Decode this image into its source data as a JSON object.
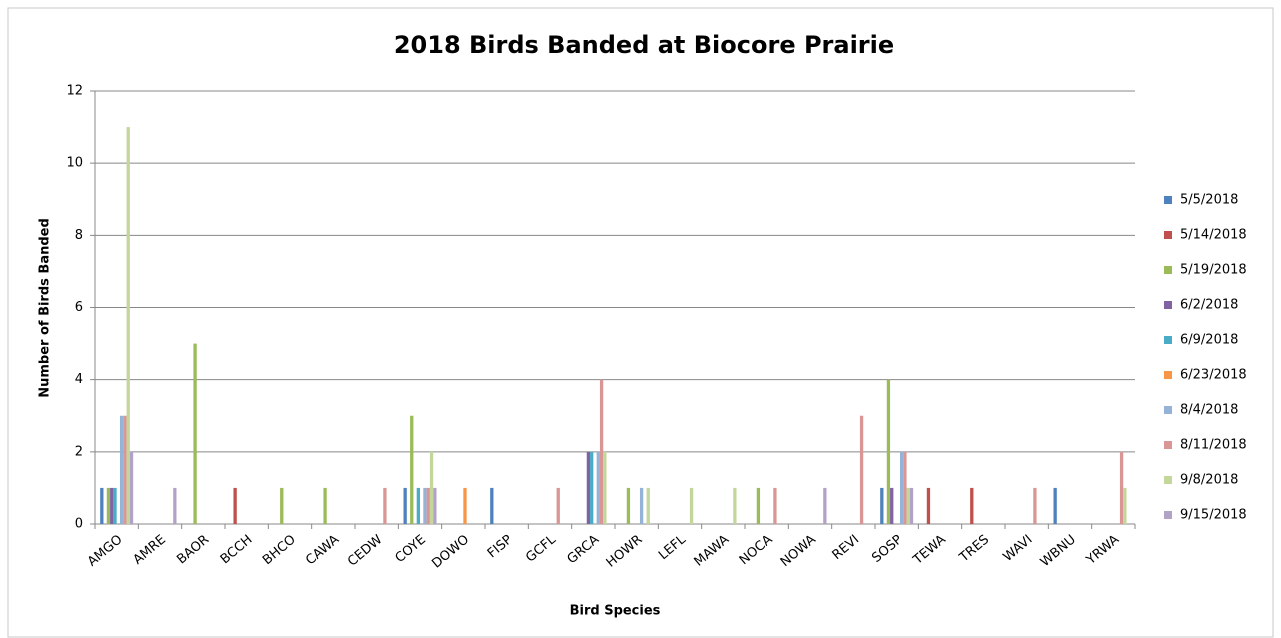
{
  "chart_data": {
    "type": "bar",
    "title": "2018 Birds Banded at Biocore Prairie",
    "x_label": "Bird Species",
    "y_label": "Number of Birds Banded",
    "categories": [
      "AMGO",
      "AMRE",
      "BAOR",
      "BCCH",
      "BHCO",
      "CAWA",
      "CEDW",
      "COYE",
      "DOWO",
      "FISP",
      "GCFL",
      "GRCA",
      "HOWR",
      "LEFL",
      "MAWA",
      "NOCA",
      "NOWA",
      "REVI",
      "SOSP",
      "TEWA",
      "TRES",
      "WAVI",
      "WBNU",
      "YRWA"
    ],
    "series": [
      {
        "name": "5/5/2018",
        "color": "#4f81bd",
        "values": [
          1,
          0,
          0,
          0,
          0,
          0,
          0,
          1,
          0,
          1,
          0,
          0,
          0,
          0,
          0,
          0,
          0,
          0,
          1,
          0,
          0,
          0,
          1,
          0
        ]
      },
      {
        "name": "5/14/2018",
        "color": "#c0504d",
        "values": [
          0,
          0,
          0,
          1,
          0,
          0,
          0,
          0,
          0,
          0,
          0,
          0,
          0,
          0,
          0,
          0,
          0,
          0,
          0,
          1,
          1,
          0,
          0,
          0
        ]
      },
      {
        "name": "5/19/2018",
        "color": "#9bbb59",
        "values": [
          1,
          0,
          5,
          0,
          1,
          1,
          0,
          3,
          0,
          0,
          0,
          0,
          1,
          0,
          0,
          1,
          0,
          0,
          4,
          0,
          0,
          0,
          0,
          0
        ]
      },
      {
        "name": "6/2/2018",
        "color": "#8064a2",
        "values": [
          1,
          0,
          0,
          0,
          0,
          0,
          0,
          0,
          0,
          0,
          0,
          2,
          0,
          0,
          0,
          0,
          0,
          0,
          1,
          0,
          0,
          0,
          0,
          0
        ]
      },
      {
        "name": "6/9/2018",
        "color": "#4bacc6",
        "values": [
          1,
          0,
          0,
          0,
          0,
          0,
          0,
          1,
          0,
          0,
          0,
          2,
          0,
          0,
          0,
          0,
          0,
          0,
          0,
          0,
          0,
          0,
          0,
          0
        ]
      },
      {
        "name": "6/23/2018",
        "color": "#f79646",
        "values": [
          0,
          0,
          0,
          0,
          0,
          0,
          0,
          0,
          1,
          0,
          0,
          0,
          0,
          0,
          0,
          0,
          0,
          0,
          0,
          0,
          0,
          0,
          0,
          0
        ]
      },
      {
        "name": "8/4/2018",
        "color": "#95b3d7",
        "values": [
          3,
          0,
          0,
          0,
          0,
          0,
          0,
          1,
          0,
          0,
          0,
          2,
          1,
          0,
          0,
          0,
          0,
          0,
          2,
          0,
          0,
          0,
          0,
          0
        ]
      },
      {
        "name": "8/11/2018",
        "color": "#d99694",
        "values": [
          3,
          0,
          0,
          0,
          0,
          0,
          1,
          1,
          0,
          0,
          1,
          4,
          0,
          0,
          0,
          1,
          0,
          3,
          2,
          0,
          0,
          1,
          0,
          2
        ]
      },
      {
        "name": "9/8/2018",
        "color": "#c3d69b",
        "values": [
          11,
          0,
          0,
          0,
          0,
          0,
          0,
          2,
          0,
          0,
          0,
          2,
          1,
          1,
          1,
          0,
          0,
          0,
          1,
          0,
          0,
          0,
          0,
          1
        ]
      },
      {
        "name": "9/15/2018",
        "color": "#b3a2c7",
        "values": [
          2,
          1,
          0,
          0,
          0,
          0,
          0,
          1,
          0,
          0,
          0,
          0,
          0,
          0,
          0,
          0,
          1,
          0,
          1,
          0,
          0,
          0,
          0,
          0
        ]
      }
    ],
    "ylim": [
      0,
      12
    ],
    "yticks": [
      0,
      2,
      4,
      6,
      8,
      10,
      12
    ],
    "grid": true,
    "legend": "right"
  }
}
